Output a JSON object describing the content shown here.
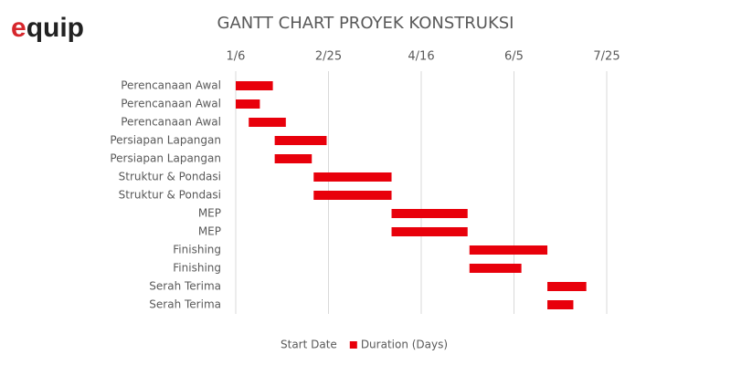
{
  "logo": {
    "accent": "e",
    "rest": "quip"
  },
  "chart_data": {
    "type": "gantt",
    "title": "GANTT CHART PROYEK KONSTRUKSI",
    "categories": [
      "Perencanaan Awal",
      "Perencanaan Awal",
      "Perencanaan Awal",
      "Persiapan Lapangan",
      "Persiapan Lapangan",
      "Struktur & Pondasi",
      "Struktur & Pondasi",
      "MEP",
      "MEP",
      "Finishing",
      "Finishing",
      "Serah Terima",
      "Serah Terima"
    ],
    "series": [
      {
        "name": "Start Date",
        "color": "none",
        "values": [
          0,
          0,
          7,
          21,
          21,
          42,
          42,
          84,
          84,
          126,
          126,
          168,
          168
        ]
      },
      {
        "name": "Duration (Days)",
        "color": "#e8000b",
        "values": [
          20,
          13,
          20,
          28,
          20,
          42,
          42,
          41,
          41,
          42,
          28,
          21,
          14
        ]
      }
    ],
    "xlim": [
      0,
      200
    ],
    "xticks": [
      {
        "value": 0,
        "label": "1/6"
      },
      {
        "value": 50,
        "label": "2/25"
      },
      {
        "value": 100,
        "label": "4/16"
      },
      {
        "value": 150,
        "label": "6/5"
      },
      {
        "value": 200,
        "label": "7/25"
      }
    ],
    "grid": true,
    "legend": "bottom"
  }
}
